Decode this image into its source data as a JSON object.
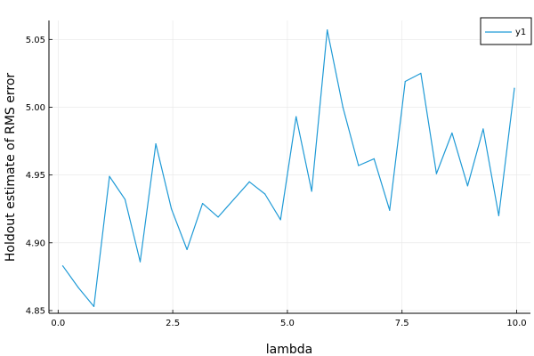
{
  "chart_data": {
    "type": "line",
    "xlabel": "lambda",
    "ylabel": "Holdout estimate of RMS error",
    "xlim": [
      -0.2,
      10.3
    ],
    "ylim": [
      4.848,
      5.064
    ],
    "x_ticks": [
      0.0,
      2.5,
      5.0,
      7.5,
      10.0
    ],
    "x_tick_labels": [
      "0.0",
      "2.5",
      "5.0",
      "7.5",
      "10.0"
    ],
    "y_ticks": [
      4.85,
      4.9,
      4.95,
      5.0,
      5.05
    ],
    "y_tick_labels": [
      "4.85",
      "4.90",
      "4.95",
      "5.00",
      "5.05"
    ],
    "grid": true,
    "legend": "top-right",
    "series": [
      {
        "name": "y1",
        "color": "#1f9ad6",
        "x": [
          0.1,
          0.44,
          0.78,
          1.12,
          1.46,
          1.79,
          2.13,
          2.47,
          2.81,
          3.15,
          3.49,
          3.83,
          4.17,
          4.51,
          4.85,
          5.19,
          5.53,
          5.87,
          6.21,
          6.55,
          6.89,
          7.23,
          7.57,
          7.91,
          8.25,
          8.59,
          8.93,
          9.27,
          9.61,
          9.95
        ],
        "y": [
          4.883,
          4.867,
          4.853,
          4.949,
          4.932,
          4.886,
          4.973,
          4.925,
          4.895,
          4.929,
          4.919,
          4.932,
          4.945,
          4.936,
          4.917,
          4.993,
          4.938,
          5.057,
          5.0,
          4.957,
          4.962,
          4.924,
          5.019,
          5.025,
          4.951,
          4.981,
          4.942,
          4.984,
          4.92,
          5.014
        ]
      }
    ]
  }
}
